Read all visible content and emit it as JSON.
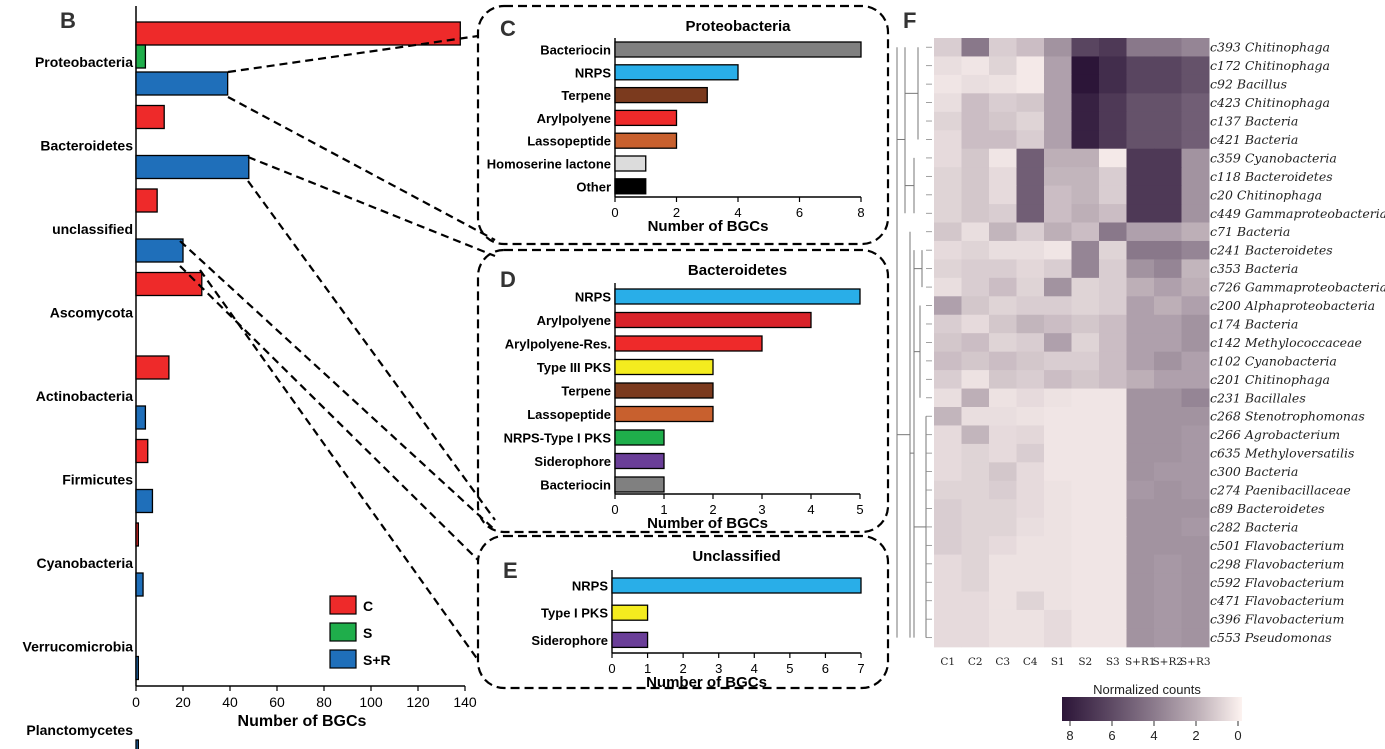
{
  "panel_letters": {
    "B": "B",
    "C": "C",
    "D": "D",
    "E": "E",
    "F": "F"
  },
  "colors": {
    "red": "#ee2a2a",
    "green": "#1fae4b",
    "blue": "#1f6fba",
    "grey": "#808080",
    "sky": "#29aee8",
    "brown": "#7b3a1e",
    "orange": "#c8602e",
    "lightgrey": "#dcdcdc",
    "black": "#000000",
    "yellow": "#f4ec1f",
    "green2": "#1fae4b",
    "purple": "#6a3e98",
    "darkred": "#d8232a",
    "heat_low": "#fdf3f0",
    "heat_high": "#2c1538"
  },
  "chart_data": [
    {
      "id": "B",
      "type": "bar",
      "orientation": "horizontal",
      "xlabel": "Number of BGCs",
      "xlim": [
        0,
        140
      ],
      "xticks": [
        0,
        20,
        40,
        60,
        80,
        100,
        120,
        140
      ],
      "categories": [
        "Proteobacteria",
        "Bacteroidetes",
        "unclassified",
        "Ascomycota",
        "Actinobacteria",
        "Firmicutes",
        "Cyanobacteria",
        "Verrucomicrobia",
        "Planctomycetes"
      ],
      "series": [
        {
          "name": "C",
          "color": "red",
          "values": [
            138,
            12,
            9,
            28,
            14,
            5,
            1,
            0,
            0
          ]
        },
        {
          "name": "S",
          "color": "green",
          "values": [
            4,
            0,
            0,
            0,
            0,
            0,
            0,
            0,
            0
          ]
        },
        {
          "name": "S+R",
          "color": "blue",
          "values": [
            39,
            48,
            20,
            0,
            4,
            7,
            3,
            1,
            1
          ]
        }
      ],
      "legend": "bottom-right"
    },
    {
      "id": "C",
      "type": "bar",
      "orientation": "horizontal",
      "title": "Proteobacteria",
      "xlabel": "Number of BGCs",
      "xlim": [
        0,
        8
      ],
      "xticks": [
        0,
        2,
        4,
        6,
        8
      ],
      "categories": [
        "Bacteriocin",
        "NRPS",
        "Terpene",
        "Arylpolyene",
        "Lassopeptide",
        "Homoserine lactone",
        "Other"
      ],
      "values": [
        8,
        4,
        3,
        2,
        2,
        1,
        1
      ],
      "colors": [
        "grey",
        "sky",
        "brown",
        "red",
        "orange",
        "lightgrey",
        "black"
      ]
    },
    {
      "id": "D",
      "type": "bar",
      "orientation": "horizontal",
      "title": "Bacteroidetes",
      "xlabel": "Number of BGCs",
      "xlim": [
        0,
        5
      ],
      "xticks": [
        0,
        1,
        2,
        3,
        4,
        5
      ],
      "categories": [
        "NRPS",
        "Arylpolyene",
        "Arylpolyene-Res.",
        "Type III PKS",
        "Terpene",
        "Lassopeptide",
        "NRPS-Type I PKS",
        "Siderophore",
        "Bacteriocin"
      ],
      "values": [
        5,
        4,
        3,
        2,
        2,
        2,
        1,
        1,
        1
      ],
      "colors": [
        "sky",
        "darkred",
        "red",
        "yellow",
        "brown",
        "orange",
        "green2",
        "purple",
        "grey"
      ]
    },
    {
      "id": "E",
      "type": "bar",
      "orientation": "horizontal",
      "title": "Unclassified",
      "xlabel": "Number of BGCs",
      "xlim": [
        0,
        7
      ],
      "xticks": [
        0,
        1,
        2,
        3,
        4,
        5,
        6,
        7
      ],
      "categories": [
        "NRPS",
        "Type I PKS",
        "Siderophore"
      ],
      "values": [
        7,
        1,
        1
      ],
      "colors": [
        "sky",
        "yellow",
        "purple"
      ]
    },
    {
      "id": "F",
      "type": "heatmap",
      "columns": [
        "C1",
        "C2",
        "C3",
        "C4",
        "S1",
        "S2",
        "S3",
        "S+R1",
        "S+R2",
        "S+R3"
      ],
      "rows": [
        {
          "id": "c393",
          "taxon": "Chitinophaga",
          "values": [
            1,
            4,
            1,
            1.5,
            3,
            6,
            6.5,
            4,
            4,
            3.5
          ]
        },
        {
          "id": "c172",
          "taxon": "Chitinophaga",
          "values": [
            0.5,
            0.3,
            0.8,
            0.2,
            2.5,
            8,
            7,
            6,
            6,
            5.5
          ]
        },
        {
          "id": "c92",
          "taxon": "Bacillus",
          "values": [
            0.3,
            0.5,
            0.4,
            0.2,
            2.5,
            8,
            7,
            6,
            6,
            5.5
          ]
        },
        {
          "id": "c423",
          "taxon": "Chitinophaga",
          "values": [
            0.5,
            1.5,
            1,
            1.2,
            2.5,
            7.5,
            6.5,
            5.5,
            5.5,
            5
          ]
        },
        {
          "id": "c137",
          "taxon": "Bacteria",
          "values": [
            0.8,
            1.5,
            1.2,
            0.8,
            2.5,
            7.5,
            6.5,
            5.5,
            5.5,
            5
          ]
        },
        {
          "id": "c421",
          "taxon": "Bacteria",
          "values": [
            0.6,
            1.5,
            1.5,
            1,
            2.5,
            7.5,
            6.5,
            5.5,
            5.5,
            5
          ]
        },
        {
          "id": "c359",
          "taxon": "Cyanobacteria",
          "values": [
            0.6,
            1.2,
            0.3,
            5,
            2,
            2,
            0.2,
            6.5,
            6.5,
            3
          ]
        },
        {
          "id": "c118",
          "taxon": "Bacteroidetes",
          "values": [
            0.8,
            1.2,
            0.6,
            5,
            1.8,
            1.8,
            1,
            6.5,
            6.5,
            3
          ]
        },
        {
          "id": "c20",
          "taxon": "Chitinophaga",
          "values": [
            0.8,
            1.2,
            0.6,
            5,
            1.5,
            1.8,
            1,
            6.5,
            6.5,
            3
          ]
        },
        {
          "id": "c449",
          "taxon": "Gammaproteobacteria",
          "values": [
            0.8,
            1.2,
            1,
            5,
            1.5,
            2,
            1.5,
            6.5,
            6.5,
            3
          ]
        },
        {
          "id": "c71",
          "taxon": "Bacteria",
          "values": [
            1.2,
            0.5,
            1.8,
            1,
            2,
            1.5,
            4,
            2.5,
            2.5,
            2
          ]
        },
        {
          "id": "c241",
          "taxon": "Bacteroidetes",
          "values": [
            0.6,
            0.8,
            0.5,
            0.5,
            0.3,
            3.5,
            0.8,
            4,
            4,
            3.5
          ]
        },
        {
          "id": "c353",
          "taxon": "Bacteria",
          "values": [
            0.8,
            1,
            1,
            0.7,
            1,
            3.5,
            1,
            3,
            3.5,
            1.8
          ]
        },
        {
          "id": "c726",
          "taxon": "Gammaproteobacteria",
          "values": [
            0.5,
            1,
            1.5,
            0.8,
            3,
            0.8,
            1,
            2,
            2.5,
            2
          ]
        },
        {
          "id": "c200",
          "taxon": "Alphaproteobacteria",
          "values": [
            2.5,
            1.2,
            0.8,
            1,
            1,
            0.8,
            1,
            2.5,
            2,
            2.5
          ]
        },
        {
          "id": "c174",
          "taxon": "Bacteria",
          "values": [
            1,
            0.6,
            1.2,
            1.8,
            1.5,
            1.2,
            1.5,
            2.5,
            2.5,
            3
          ]
        },
        {
          "id": "c142",
          "taxon": "Methylococcaceae",
          "values": [
            1.2,
            1.5,
            0.8,
            1,
            2.5,
            0.8,
            1.5,
            2.5,
            2.5,
            3
          ]
        },
        {
          "id": "c102",
          "taxon": "Cyanobacteria",
          "values": [
            1.5,
            1.2,
            1.5,
            1.2,
            1,
            1,
            1.5,
            2.5,
            3,
            2.5
          ]
        },
        {
          "id": "c201",
          "taxon": "Chitinophaga",
          "values": [
            1,
            0.4,
            1.2,
            1,
            1.5,
            1.2,
            1.5,
            2,
            2.5,
            2.5
          ]
        },
        {
          "id": "c231",
          "taxon": "Bacillales",
          "values": [
            0.5,
            2,
            0.4,
            0.6,
            0.4,
            0.3,
            0.3,
            3,
            3,
            3.5
          ]
        },
        {
          "id": "c268",
          "taxon": "Stenotrophomonas",
          "values": [
            1.8,
            0.5,
            0.5,
            0.4,
            0.3,
            0.3,
            0.3,
            3,
            3,
            3
          ]
        },
        {
          "id": "c266",
          "taxon": "Agrobacterium",
          "values": [
            0.6,
            1.8,
            0.6,
            0.7,
            0.3,
            0.3,
            0.3,
            3,
            3,
            2.8
          ]
        },
        {
          "id": "c635",
          "taxon": "Methyloversatilis",
          "values": [
            0.6,
            0.8,
            0.6,
            1,
            0.3,
            0.3,
            0.3,
            3,
            3,
            2.8
          ]
        },
        {
          "id": "c300",
          "taxon": "Bacteria",
          "values": [
            0.6,
            0.8,
            1.2,
            0.6,
            0.3,
            0.3,
            0.3,
            3,
            2.8,
            2.8
          ]
        },
        {
          "id": "c274",
          "taxon": "Paenibacillaceae",
          "values": [
            0.8,
            0.8,
            1,
            0.6,
            0.4,
            0.3,
            0.3,
            2.8,
            3,
            2.8
          ]
        },
        {
          "id": "c89",
          "taxon": "Bacteroidetes",
          "values": [
            1,
            0.8,
            0.8,
            0.6,
            0.4,
            0.3,
            0.3,
            3,
            3,
            3
          ]
        },
        {
          "id": "c282",
          "taxon": "Bacteria",
          "values": [
            1,
            0.8,
            0.8,
            0.5,
            0.4,
            0.3,
            0.3,
            3,
            3,
            2.8
          ]
        },
        {
          "id": "c501",
          "taxon": "Flavobacterium",
          "values": [
            1,
            0.8,
            0.6,
            0.4,
            0.4,
            0.3,
            0.3,
            3,
            3,
            3
          ]
        },
        {
          "id": "c298",
          "taxon": "Flavobacterium",
          "values": [
            0.6,
            0.8,
            0.4,
            0.4,
            0.4,
            0.3,
            0.3,
            3,
            2.8,
            3
          ]
        },
        {
          "id": "c592",
          "taxon": "Flavobacterium",
          "values": [
            0.6,
            0.8,
            0.4,
            0.4,
            0.4,
            0.3,
            0.3,
            3,
            2.8,
            3
          ]
        },
        {
          "id": "c471",
          "taxon": "Flavobacterium",
          "values": [
            0.6,
            0.6,
            0.4,
            0.8,
            0.4,
            0.3,
            0.3,
            3,
            2.8,
            3
          ]
        },
        {
          "id": "c396",
          "taxon": "Flavobacterium",
          "values": [
            0.6,
            0.6,
            0.4,
            0.4,
            0.6,
            0.3,
            0.3,
            3,
            2.8,
            3
          ]
        },
        {
          "id": "c553",
          "taxon": "Pseudomonas",
          "values": [
            0.6,
            0.6,
            0.4,
            0.4,
            0.6,
            0.3,
            0.3,
            3,
            2.8,
            3
          ]
        }
      ],
      "colorbar": {
        "label": "Normalized counts",
        "range": [
          8,
          0
        ],
        "ticks": [
          8,
          6,
          4,
          2,
          0
        ]
      }
    }
  ]
}
